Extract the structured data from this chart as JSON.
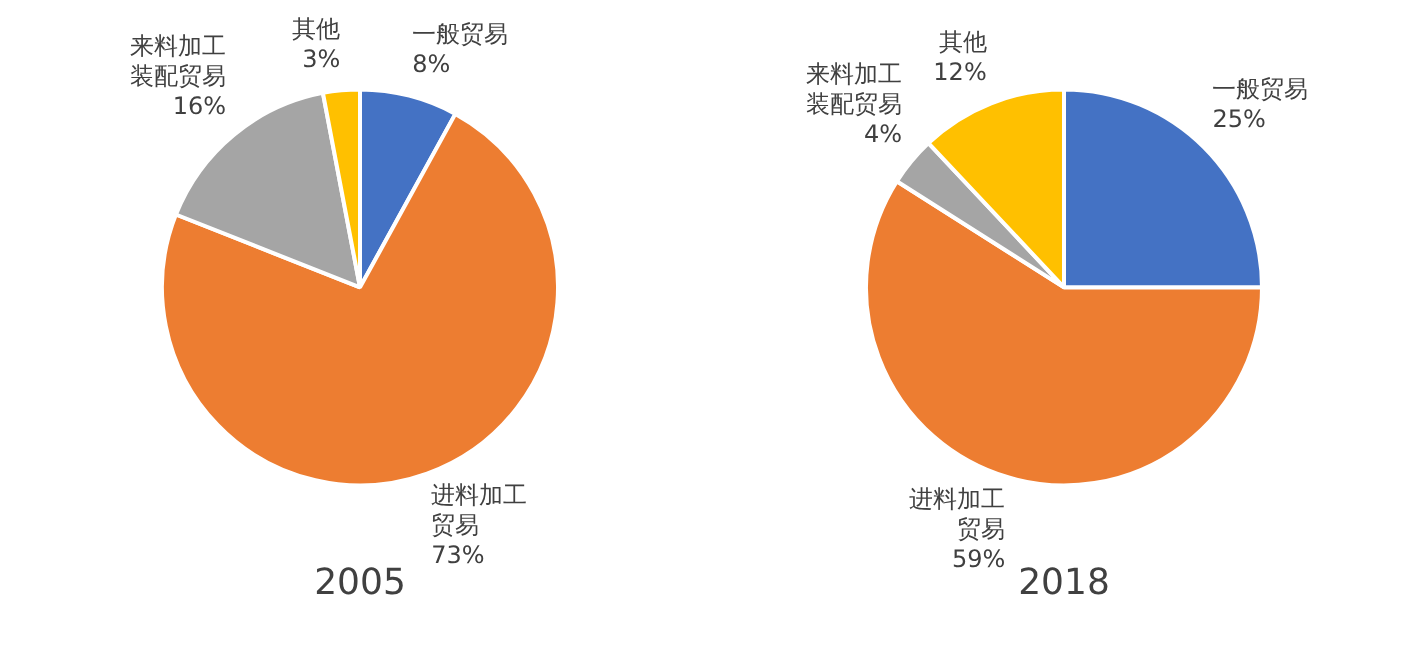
{
  "chart_data": [
    {
      "type": "pie",
      "title": "2005",
      "categories": [
        "一般贸易",
        "进料加工贸易",
        "来料加工装配贸易",
        "其他"
      ],
      "values": [
        8,
        73,
        16,
        3
      ],
      "colors": [
        "#4472c4",
        "#ed7d31",
        "#a5a5a5",
        "#ffc000"
      ],
      "value_labels": [
        "8%",
        "73%",
        "16%",
        "3%"
      ],
      "legend": false
    },
    {
      "type": "pie",
      "title": "2018",
      "categories": [
        "一般贸易",
        "进料加工贸易",
        "来料加工装配贸易",
        "其他"
      ],
      "values": [
        25,
        59,
        4,
        12
      ],
      "colors": [
        "#4472c4",
        "#ed7d31",
        "#a5a5a5",
        "#ffc000"
      ],
      "value_labels": [
        "25%",
        "59%",
        "4%",
        "12%"
      ],
      "legend": false
    }
  ]
}
